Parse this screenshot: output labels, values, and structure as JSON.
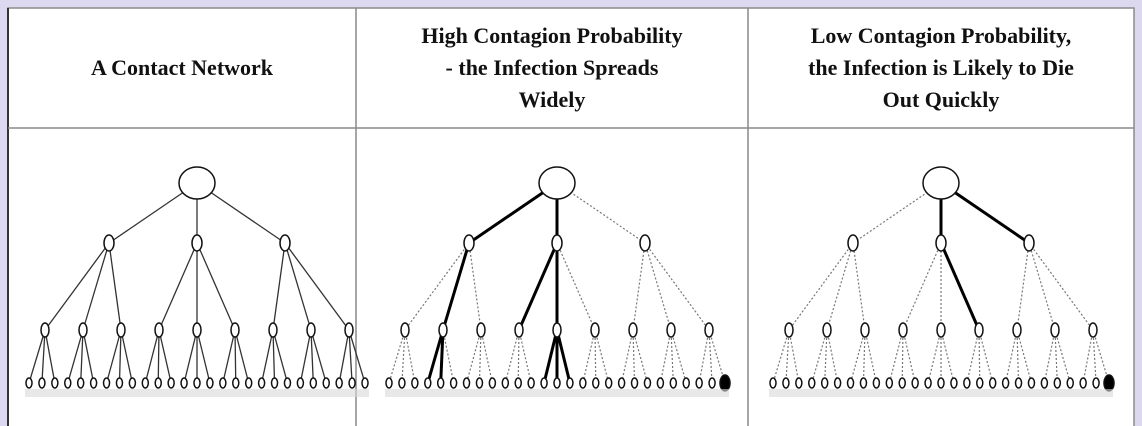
{
  "table": {
    "headers": [
      [
        "A Contact Network"
      ],
      [
        "High Contagion Probability",
        "- the Infection Spreads",
        "Widely"
      ],
      [
        "Low Contagion Probability,",
        "the Infection is Likely to Die",
        "Out Quickly"
      ]
    ]
  }
}
